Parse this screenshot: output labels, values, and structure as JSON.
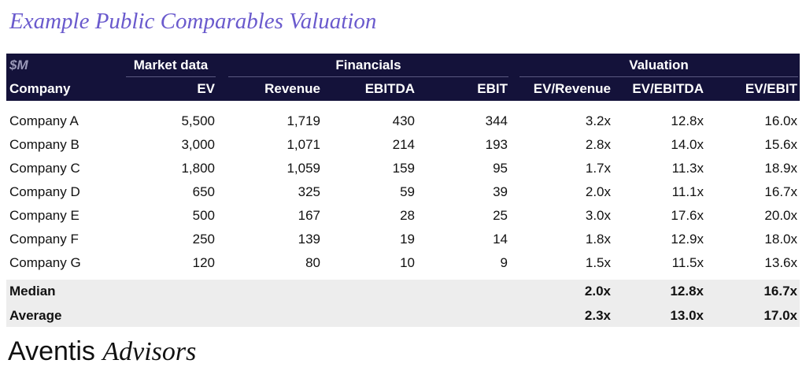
{
  "title": "Example Public Comparables Valuation",
  "table": {
    "unit": "$M",
    "groups": [
      "Market data",
      "Financials",
      "Valuation"
    ],
    "columns": [
      "Company",
      "EV",
      "Revenue",
      "EBITDA",
      "EBIT",
      "EV/Revenue",
      "EV/EBITDA",
      "EV/EBIT"
    ],
    "rows": [
      [
        "Company A",
        "5,500",
        "1,719",
        "430",
        "344",
        "3.2x",
        "12.8x",
        "16.0x"
      ],
      [
        "Company B",
        "3,000",
        "1,071",
        "214",
        "193",
        "2.8x",
        "14.0x",
        "15.6x"
      ],
      [
        "Company C",
        "1,800",
        "1,059",
        "159",
        "95",
        "1.7x",
        "11.3x",
        "18.9x"
      ],
      [
        "Company D",
        "650",
        "325",
        "59",
        "39",
        "2.0x",
        "11.1x",
        "16.7x"
      ],
      [
        "Company E",
        "500",
        "167",
        "28",
        "25",
        "3.0x",
        "17.6x",
        "20.0x"
      ],
      [
        "Company F",
        "250",
        "139",
        "19",
        "14",
        "1.8x",
        "12.9x",
        "18.0x"
      ],
      [
        "Company G",
        "120",
        "80",
        "10",
        "9",
        "1.5x",
        "11.5x",
        "13.6x"
      ]
    ],
    "summary": [
      [
        "Median",
        "2.0x",
        "12.8x",
        "16.7x"
      ],
      [
        "Average",
        "2.3x",
        "13.0x",
        "17.0x"
      ]
    ]
  },
  "footer": {
    "brand": "Aventis",
    "brand_italic": "Advisors"
  }
}
